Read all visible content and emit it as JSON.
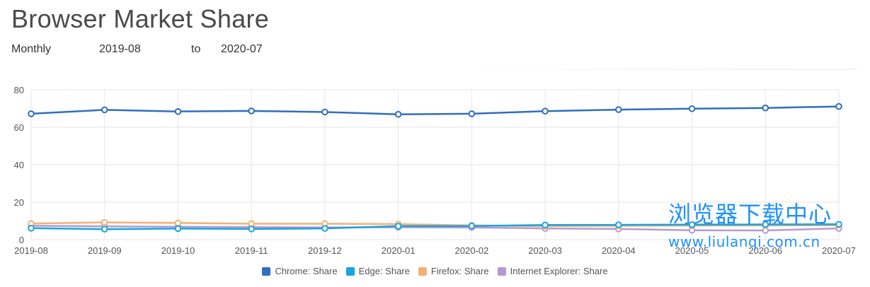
{
  "page": {
    "title": "Browser Market Share",
    "interval": "Monthly",
    "from": "2019-08",
    "to_label": "to",
    "to": "2020-07"
  },
  "watermark": {
    "cn": "浏览器下载中心",
    "url": "www.liulanqi.com.cn"
  },
  "chart_data": {
    "type": "line",
    "x": [
      "2019-08",
      "2019-09",
      "2019-10",
      "2019-11",
      "2019-12",
      "2020-01",
      "2020-02",
      "2020-03",
      "2020-04",
      "2020-05",
      "2020-06",
      "2020-07"
    ],
    "ylim": [
      0,
      80
    ],
    "yticks": [
      0,
      20,
      40,
      60,
      80
    ],
    "grid": true,
    "legend_position": "bottom",
    "series": [
      {
        "name": "Chrome: Share",
        "color": "#2e6fbf",
        "values": [
          67.2,
          69.3,
          68.4,
          68.7,
          68.1,
          66.9,
          67.2,
          68.6,
          69.4,
          69.9,
          70.3,
          71.1
        ]
      },
      {
        "name": "Edge: Share",
        "color": "#19a4dd",
        "values": [
          6.1,
          5.6,
          5.9,
          5.7,
          6.0,
          7.2,
          7.3,
          7.8,
          7.9,
          8.0,
          8.1,
          8.2
        ]
      },
      {
        "name": "Firefox: Share",
        "color": "#f4b071",
        "values": [
          8.6,
          9.2,
          8.9,
          8.5,
          8.5,
          8.3,
          7.6,
          7.2,
          7.4,
          7.5,
          7.6,
          7.7
        ]
      },
      {
        "name": "Internet Explorer: Share",
        "color": "#b49ad1",
        "values": [
          7.4,
          7.1,
          6.9,
          6.7,
          6.5,
          6.6,
          6.5,
          6.0,
          5.7,
          5.0,
          4.9,
          6.0
        ]
      }
    ]
  }
}
